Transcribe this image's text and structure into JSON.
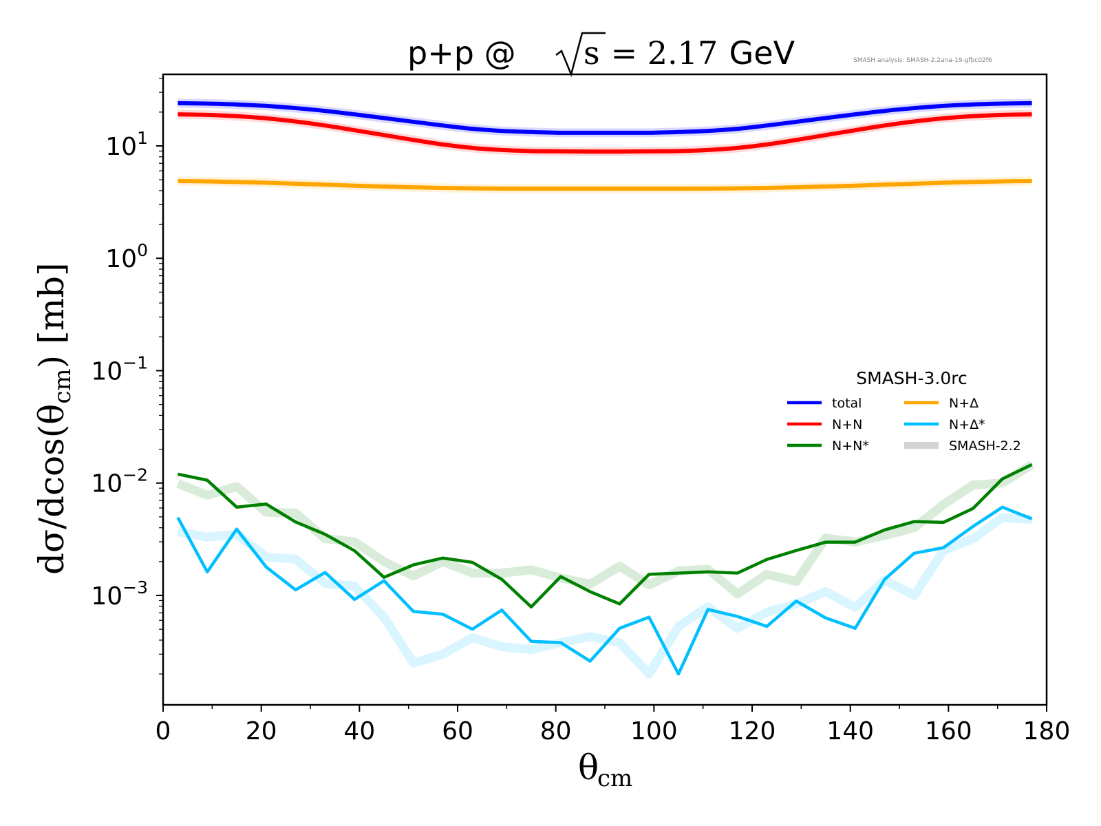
{
  "chart_data": {
    "type": "line",
    "title": "p+p @ √s = 2.17 GeV",
    "title_parts": {
      "prefix": "p+p @ ",
      "sqrt_arg": "s",
      "equals_value": " = 2.17",
      "unit": " GeV"
    },
    "annotation": "SMASH analysis: SMASH-2.2ana-19-gfbc02f6",
    "xlabel": "θ",
    "xlabel_sub": "cm",
    "ylabel": "dσ/dcos(θ",
    "ylabel_sub": "cm",
    "ylabel_suffix": ") [mb]",
    "xlim": [
      0,
      180
    ],
    "ylim_log10": [
      -3.974,
      1.637
    ],
    "yscale": "log",
    "grid": false,
    "xticks": [
      0,
      20,
      40,
      60,
      80,
      100,
      120,
      140,
      160,
      180
    ],
    "xtick_labels": [
      "0",
      "20",
      "40",
      "60",
      "80",
      "100",
      "120",
      "140",
      "160",
      "180"
    ],
    "yticks_exp": [
      1,
      0,
      -1,
      -2,
      -3
    ],
    "ytick_labels": [
      {
        "base": "10",
        "exp": "1"
      },
      {
        "base": "10",
        "exp": "0"
      },
      {
        "base": "10",
        "exp": "−1"
      },
      {
        "base": "10",
        "exp": "−2"
      },
      {
        "base": "10",
        "exp": "−3"
      }
    ],
    "legend": {
      "title": "SMASH-3.0rc",
      "placement": "center-right",
      "entries": [
        {
          "label": "total",
          "color": "#0000ff"
        },
        {
          "label": "N+N",
          "color": "#ff0000"
        },
        {
          "label": "N+N*",
          "color": "#008000"
        },
        {
          "label": "N+Δ",
          "color": "#ffa500"
        },
        {
          "label": "N+Δ*",
          "color": "#00bfff"
        },
        {
          "label": "SMASH-2.2",
          "color": "#d3d3d3"
        }
      ]
    },
    "x": [
      3,
      9,
      15,
      21,
      27,
      33,
      39,
      45,
      51,
      57,
      63,
      69,
      75,
      81,
      87,
      93,
      99,
      105,
      111,
      117,
      123,
      129,
      135,
      141,
      147,
      153,
      159,
      165,
      171,
      177
    ],
    "series": [
      {
        "name": "total",
        "version": "SMASH-3.0rc",
        "color": "#0000ff",
        "values": [
          24.0,
          23.8,
          23.4,
          22.7,
          21.7,
          20.5,
          19.1,
          17.7,
          16.4,
          15.2,
          14.2,
          13.6,
          13.3,
          13.1,
          13.1,
          13.1,
          13.1,
          13.3,
          13.6,
          14.2,
          15.2,
          16.4,
          17.7,
          19.1,
          20.5,
          21.7,
          22.7,
          23.4,
          23.8,
          24.0
        ]
      },
      {
        "name": "N+N",
        "version": "SMASH-3.0rc",
        "color": "#ff0000",
        "values": [
          19.1,
          18.9,
          18.4,
          17.6,
          16.5,
          15.2,
          13.8,
          12.5,
          11.3,
          10.3,
          9.6,
          9.2,
          9.0,
          8.95,
          8.9,
          8.9,
          8.95,
          9.0,
          9.2,
          9.6,
          10.3,
          11.3,
          12.5,
          13.8,
          15.2,
          16.5,
          17.6,
          18.4,
          18.9,
          19.1
        ]
      },
      {
        "name": "N+Δ",
        "version": "SMASH-3.0rc",
        "color": "#ffa500",
        "values": [
          4.87,
          4.84,
          4.78,
          4.7,
          4.61,
          4.52,
          4.43,
          4.35,
          4.28,
          4.23,
          4.19,
          4.17,
          4.16,
          4.16,
          4.16,
          4.16,
          4.16,
          4.16,
          4.17,
          4.19,
          4.23,
          4.28,
          4.35,
          4.43,
          4.52,
          4.61,
          4.7,
          4.78,
          4.84,
          4.87
        ]
      },
      {
        "name": "N+N*",
        "version": "SMASH-3.0rc",
        "color": "#008000",
        "values": [
          0.012,
          0.0106,
          0.0061,
          0.0065,
          0.0045,
          0.0035,
          0.0025,
          0.00145,
          0.00187,
          0.00215,
          0.00197,
          0.00139,
          0.00079,
          0.00147,
          0.00108,
          0.00084,
          0.00154,
          0.00158,
          0.00162,
          0.00158,
          0.00209,
          0.00251,
          0.00298,
          0.00298,
          0.00383,
          0.00454,
          0.00447,
          0.00594,
          0.0109,
          0.0146
        ]
      },
      {
        "name": "N+Δ*",
        "version": "SMASH-3.0rc",
        "color": "#00bfff",
        "values": [
          0.00494,
          0.00162,
          0.00389,
          0.00179,
          0.00112,
          0.0016,
          0.00092,
          0.00135,
          0.00072,
          0.00068,
          0.0005,
          0.00074,
          0.00039,
          0.00038,
          0.00026,
          0.00051,
          0.00064,
          0.0002,
          0.00075,
          0.00065,
          0.00053,
          0.00089,
          0.00063,
          0.00051,
          0.00139,
          0.00237,
          0.00266,
          0.00411,
          0.0061,
          0.0048
        ]
      },
      {
        "name": "total",
        "version": "SMASH-2.2",
        "color": "#0000ff",
        "values": [
          24.0,
          23.8,
          23.4,
          22.7,
          21.7,
          20.5,
          19.1,
          17.7,
          16.4,
          15.2,
          14.2,
          13.6,
          13.3,
          13.1,
          13.1,
          13.1,
          13.1,
          13.3,
          13.6,
          14.2,
          15.2,
          16.4,
          17.7,
          19.1,
          20.5,
          21.7,
          22.7,
          23.4,
          23.8,
          24.0
        ]
      },
      {
        "name": "N+N",
        "version": "SMASH-2.2",
        "color": "#ff0000",
        "values": [
          19.1,
          18.9,
          18.4,
          17.6,
          16.5,
          15.2,
          13.8,
          12.5,
          11.3,
          10.3,
          9.6,
          9.2,
          9.0,
          8.95,
          8.9,
          8.9,
          8.95,
          9.0,
          9.2,
          9.6,
          10.3,
          11.3,
          12.5,
          13.8,
          15.2,
          16.5,
          17.6,
          18.4,
          18.9,
          19.1
        ]
      },
      {
        "name": "N+Δ",
        "version": "SMASH-2.2",
        "color": "#ffa500",
        "values": [
          4.87,
          4.84,
          4.78,
          4.7,
          4.61,
          4.52,
          4.43,
          4.35,
          4.28,
          4.23,
          4.19,
          4.17,
          4.16,
          4.16,
          4.16,
          4.16,
          4.16,
          4.16,
          4.17,
          4.19,
          4.23,
          4.28,
          4.35,
          4.43,
          4.52,
          4.61,
          4.7,
          4.78,
          4.84,
          4.87
        ]
      },
      {
        "name": "N+N*",
        "version": "SMASH-2.2",
        "color": "#008000",
        "values": [
          0.0099,
          0.0078,
          0.0093,
          0.0055,
          0.0054,
          0.0032,
          0.003,
          0.002,
          0.00149,
          0.002,
          0.00158,
          0.00158,
          0.00169,
          0.00143,
          0.00126,
          0.00182,
          0.00124,
          0.00165,
          0.00171,
          0.00103,
          0.00154,
          0.00133,
          0.00324,
          0.00298,
          0.00342,
          0.004,
          0.00646,
          0.0096,
          0.01,
          0.0146
        ]
      },
      {
        "name": "N+Δ*",
        "version": "SMASH-2.2",
        "color": "#00bfff",
        "values": [
          0.0037,
          0.0033,
          0.0035,
          0.0022,
          0.0021,
          0.00128,
          0.00121,
          0.00064,
          0.00025,
          0.0003,
          0.00042,
          0.00035,
          0.00033,
          0.00038,
          0.00043,
          0.00038,
          0.0002,
          0.00053,
          0.00079,
          0.00051,
          0.00071,
          0.00084,
          0.00108,
          0.00078,
          0.00137,
          0.001,
          0.00251,
          0.00319,
          0.00494,
          0.00474
        ]
      }
    ]
  }
}
